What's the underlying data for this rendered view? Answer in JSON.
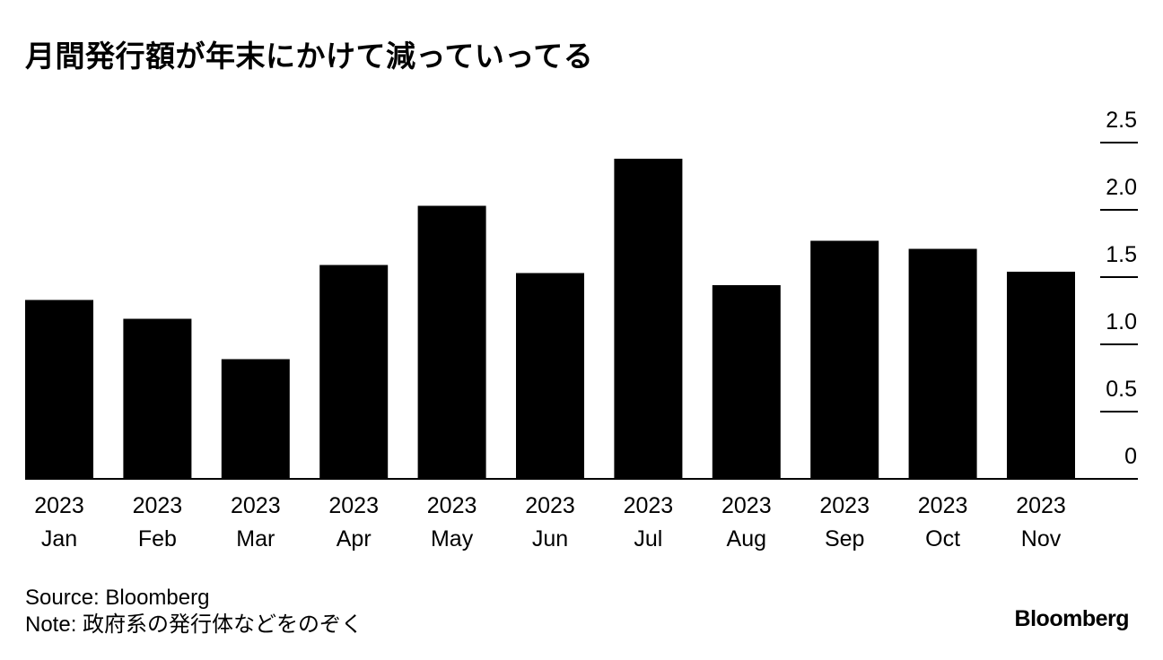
{
  "chart_data": {
    "type": "bar",
    "title": "月間発行額が年末にかけて減っていってる",
    "categories": [
      [
        "2023",
        "Jan"
      ],
      [
        "2023",
        "Feb"
      ],
      [
        "2023",
        "Mar"
      ],
      [
        "2023",
        "Apr"
      ],
      [
        "2023",
        "May"
      ],
      [
        "2023",
        "Jun"
      ],
      [
        "2023",
        "Jul"
      ],
      [
        "2023",
        "Aug"
      ],
      [
        "2023",
        "Sep"
      ],
      [
        "2023",
        "Oct"
      ],
      [
        "2023",
        "Nov"
      ]
    ],
    "values": [
      1.33,
      1.19,
      0.89,
      1.59,
      2.03,
      1.53,
      2.38,
      1.44,
      1.77,
      1.71,
      1.54
    ],
    "xlabel": "",
    "ylabel": "",
    "ylim": [
      0,
      2.5
    ],
    "yticks": [
      "0",
      "0.5",
      "1.0",
      "1.5",
      "2.0",
      "2.5"
    ],
    "y_axis_position": "right",
    "grid": false,
    "bar_color": "#000000"
  },
  "footer": {
    "source": "Source: Bloomberg",
    "note": "Note: 政府系の発行体などをのぞく"
  },
  "brand": "Bloomberg"
}
